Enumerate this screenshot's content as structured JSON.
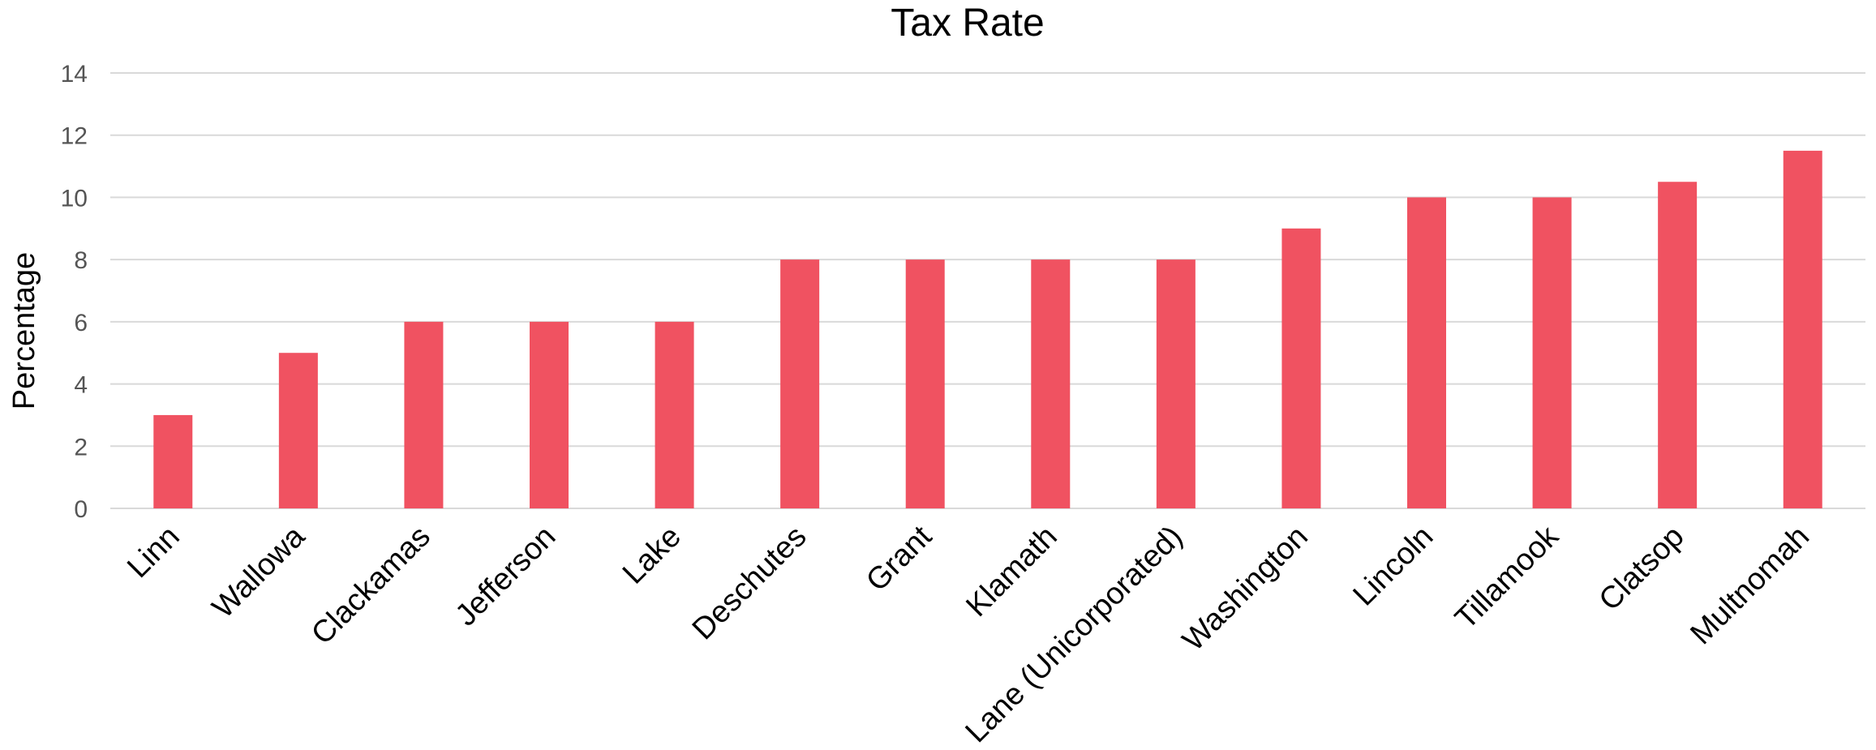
{
  "chart_data": {
    "type": "bar",
    "title": "Tax Rate",
    "xlabel": "",
    "ylabel": "Percentage",
    "categories": [
      "Linn",
      "Wallowa",
      "Clackamas",
      "Jefferson",
      "Lake",
      "Deschutes",
      "Grant",
      "Klamath",
      "Lane (Unicorporated)",
      "Washington",
      "Lincoln",
      "Tillamook",
      "Clatsop",
      "Multnomah"
    ],
    "values": [
      3,
      5,
      6,
      6,
      6,
      8,
      8,
      8,
      8,
      9,
      10,
      10,
      10.5,
      11.5
    ],
    "ylim": [
      0,
      14
    ],
    "yticks": [
      0,
      2,
      4,
      6,
      8,
      10,
      12,
      14
    ],
    "grid": true,
    "legend": "none",
    "bar_color": "#f05261",
    "grid_color": "#d9d9d9"
  }
}
